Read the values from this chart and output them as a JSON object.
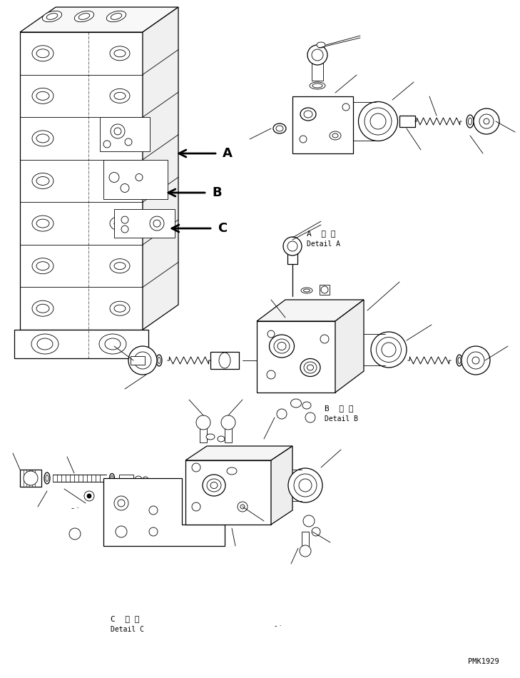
{
  "background_color": "#ffffff",
  "line_color": "#000000",
  "figsize": [
    7.29,
    9.5
  ],
  "dpi": 100,
  "watermark": "PMK1929",
  "labels": {
    "A_detail": [
      "A  詳 細",
      "Detail A"
    ],
    "B_detail": [
      "B  詳 細",
      "Detail B"
    ],
    "C_detail": [
      "C  詳 細",
      "Detail C"
    ]
  }
}
